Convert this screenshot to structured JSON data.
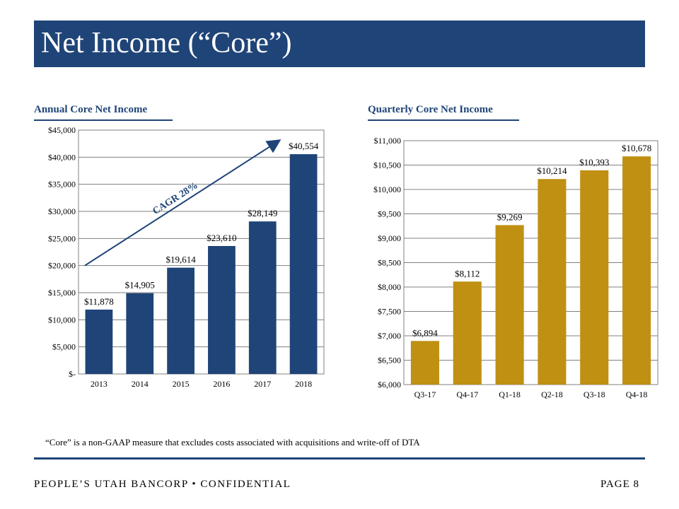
{
  "page": {
    "title": "Net Income (“Core”)",
    "footnote": "“Core” is a non-GAAP measure that excludes costs associated with acquisitions and write-off of DTA",
    "footer_left": "PEOPLE’S UTAH BANCORP • CONFIDENTIAL",
    "footer_right": "PAGE 8",
    "colors": {
      "title_bar": "#1f4478",
      "annual_bars": "#1f4478",
      "quarterly_bars": "#bf9012"
    }
  },
  "chart_data": [
    {
      "type": "bar",
      "title": "Annual  Core Net Income",
      "categories": [
        "2013",
        "2014",
        "2015",
        "2016",
        "2017",
        "2018"
      ],
      "values": [
        11878,
        14905,
        19614,
        23610,
        28149,
        40554
      ],
      "data_labels": [
        "$11,878",
        "$14,905",
        "$19,614",
        "$23,610",
        "$28,149",
        "$40,554"
      ],
      "ylim": [
        0,
        45000
      ],
      "yticks": [
        0,
        5000,
        10000,
        15000,
        20000,
        25000,
        30000,
        35000,
        40000,
        45000
      ],
      "ytick_labels": [
        "$-",
        "$5,000",
        "$10,000",
        "$15,000",
        "$20,000",
        "$25,000",
        "$30,000",
        "$35,000",
        "$40,000",
        "$45,000"
      ],
      "grid": true,
      "annotation": {
        "text": "CAGR 28%",
        "from": {
          "x": "2013",
          "y": 20000
        },
        "to": {
          "x": "2018",
          "y": 43000
        }
      }
    },
    {
      "type": "bar",
      "title": "Quarterly Core Net Income",
      "categories": [
        "Q3-17",
        "Q4-17",
        "Q1-18",
        "Q2-18",
        "Q3-18",
        "Q4-18"
      ],
      "values": [
        6894,
        8112,
        9269,
        10214,
        10393,
        10678
      ],
      "data_labels": [
        "$6,894",
        "$8,112",
        "$9,269",
        "$10,214",
        "$10,393",
        "$10,678"
      ],
      "ylim": [
        6000,
        11000
      ],
      "yticks": [
        6000,
        6500,
        7000,
        7500,
        8000,
        8500,
        9000,
        9500,
        10000,
        10500,
        11000
      ],
      "ytick_labels": [
        "$6,000",
        "$6,500",
        "$7,000",
        "$7,500",
        "$8,000",
        "$8,500",
        "$9,000",
        "$9,500",
        "$10,000",
        "$10,500",
        "$11,000"
      ],
      "grid": true
    }
  ]
}
